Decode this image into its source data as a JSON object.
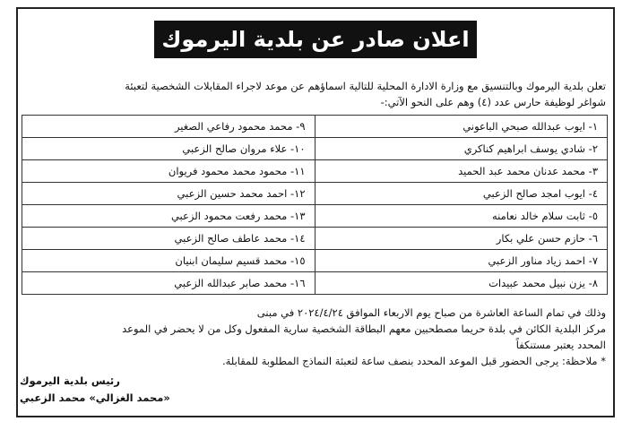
{
  "header": {
    "title": "اعلان صادر عن بلدية اليرموك"
  },
  "intro": {
    "lines": [
      "تعلن بلدية اليرموك وبالتنسيق مع وزارة الادارة المحلية للتالية اسماؤهم عن موعد لاجراء المقابلات الشخصية لتعبئة",
      "شواغر لوظيفة حارس عدد (٤) وهم على النحو الآتي:-"
    ]
  },
  "table": {
    "rows": [
      [
        "١- ايوب عبدالله صبحي الباعوني",
        "٩- محمد محمود رفاعي الصغير"
      ],
      [
        "٢- شادي يوسف ابراهيم كناكري",
        "١٠- علاء مروان صالح الزعبي"
      ],
      [
        "٣- محمد عدنان محمد عبد الحميد",
        "١١- محمود محمد محمود فريوان"
      ],
      [
        "٤- ايوب امجد صالح الزعبي",
        "١٢- احمد محمد حسين الزعبي"
      ],
      [
        "٥- ثابت سلام خالد نعامنه",
        "١٣- محمد رفعت محمود الزعبي"
      ],
      [
        "٦- حازم حسن علي بكار",
        "١٤- محمد عاطف صالح الزعبي"
      ],
      [
        "٧- احمد زياد مناور الزعبي",
        "١٥- محمد قسيم سليمان ابنيان"
      ],
      [
        "٨- يزن نبيل محمد عبيدات",
        "١٦- محمد صابر عبدالله الزعبي"
      ]
    ]
  },
  "body": {
    "lines": [
      "وذلك في تمام الساعة العاشرة من صباح يوم الاربعاء الموافق ٢٠٢٤/٤/٢٤ في مبنى",
      "مركز البلدية الكائن في بلدة حريما مصطحبين معهم البطاقة الشخصية سارية المفعول وكل من لا يحضر في الموعد",
      "المحدد يعتبر مستنكفاً"
    ]
  },
  "note": "* ملاحظة: يرجى الحضور قبل الموعد المحدد بنصف ساعة لتعبئة النماذج المطلوبة للمقابلة.",
  "signature": {
    "lines": [
      "رئيس بلدية اليرموك",
      "«محمد الغزالي» محمد الزعبي"
    ]
  }
}
